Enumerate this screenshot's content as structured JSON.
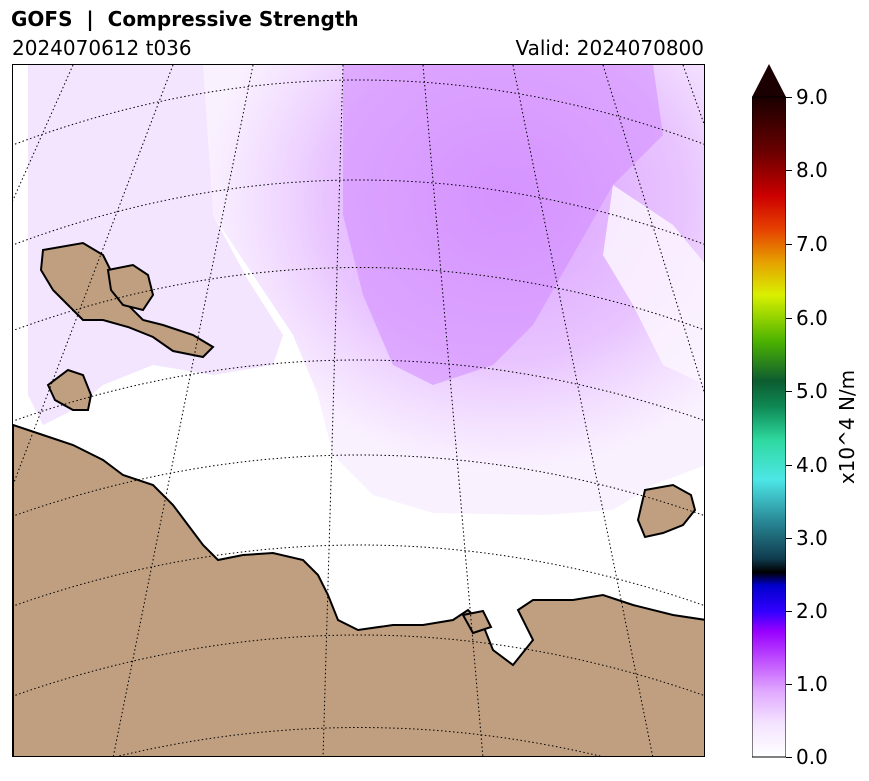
{
  "header": {
    "title": "GOFS  |  Compressive Strength",
    "run": "2024070612 t036",
    "valid": "Valid: 2024070800"
  },
  "colorbar": {
    "label": "x10^4 N/m",
    "ticks": [
      "0.0",
      "1.0",
      "2.0",
      "3.0",
      "4.0",
      "5.0",
      "6.0",
      "7.0",
      "8.0",
      "9.0"
    ],
    "colors": [
      "#ffffff",
      "#f0d8ff",
      "#d98cff",
      "#b300ff",
      "#3300ff",
      "#0000ff",
      "#000033",
      "#0f4d66",
      "#2e9999",
      "#47e6e6",
      "#2ee6a6",
      "#0f9960",
      "#0d6633",
      "#33a600",
      "#99e600",
      "#e6f000",
      "#e69900",
      "#e62e00",
      "#990000",
      "#330000",
      "#1a0000"
    ]
  },
  "map": {
    "land_color": "#bf9f80",
    "ice_color": "#dca2ff",
    "ice_light_color": "#f2ddff"
  }
}
